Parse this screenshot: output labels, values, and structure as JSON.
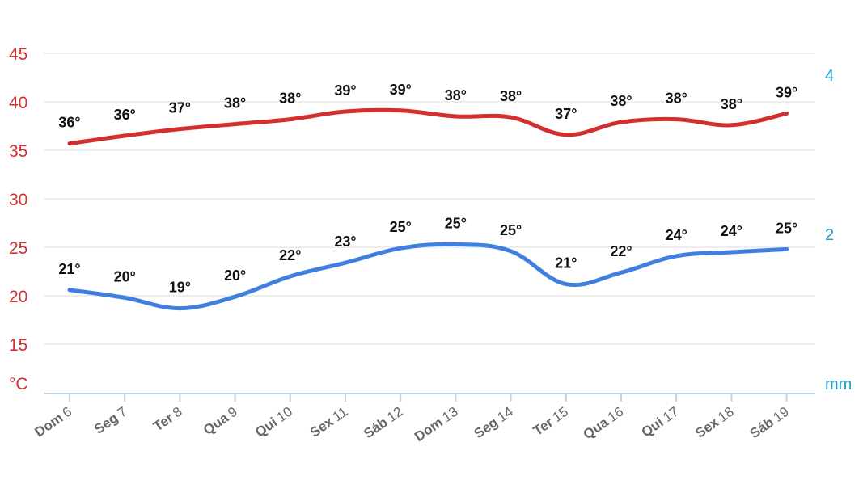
{
  "chart_data": {
    "type": "line",
    "categories": [
      {
        "day": "Dom",
        "num": "6"
      },
      {
        "day": "Seg",
        "num": "7"
      },
      {
        "day": "Ter",
        "num": "8"
      },
      {
        "day": "Qua",
        "num": "9"
      },
      {
        "day": "Qui",
        "num": "10"
      },
      {
        "day": "Sex",
        "num": "11"
      },
      {
        "day": "Sáb",
        "num": "12"
      },
      {
        "day": "Dom",
        "num": "13"
      },
      {
        "day": "Seg",
        "num": "14"
      },
      {
        "day": "Ter",
        "num": "15"
      },
      {
        "day": "Qua",
        "num": "16"
      },
      {
        "day": "Qui",
        "num": "17"
      },
      {
        "day": "Sex",
        "num": "18"
      },
      {
        "day": "Sáb",
        "num": "19"
      }
    ],
    "series": [
      {
        "color": "#d32f2f",
        "values": [
          35.7,
          36.5,
          37.2,
          37.7,
          38.2,
          39.0,
          39.1,
          38.5,
          38.4,
          36.6,
          37.9,
          38.2,
          37.6,
          38.8
        ],
        "labels": [
          "36°",
          "36°",
          "37°",
          "38°",
          "38°",
          "39°",
          "39°",
          "38°",
          "38°",
          "37°",
          "38°",
          "38°",
          "38°",
          "39°"
        ]
      },
      {
        "color": "#3f7fe0",
        "values": [
          20.6,
          19.8,
          18.7,
          19.9,
          22.0,
          23.4,
          24.9,
          25.3,
          24.6,
          21.2,
          22.4,
          24.1,
          24.5,
          24.8
        ],
        "labels": [
          "21°",
          "20°",
          "19°",
          "20°",
          "22°",
          "23°",
          "25°",
          "25°",
          "25°",
          "21°",
          "22°",
          "24°",
          "24°",
          "25°"
        ]
      }
    ],
    "y_left": {
      "ticks": [
        "45",
        "40",
        "35",
        "30",
        "25",
        "20",
        "15"
      ],
      "unit": "°C",
      "range": [
        10,
        45
      ],
      "color": "#d32f2f"
    },
    "y_right": {
      "ticks": [
        "4",
        "2"
      ],
      "unit": "mm",
      "color": "#1e9cc8"
    },
    "grid": true
  }
}
